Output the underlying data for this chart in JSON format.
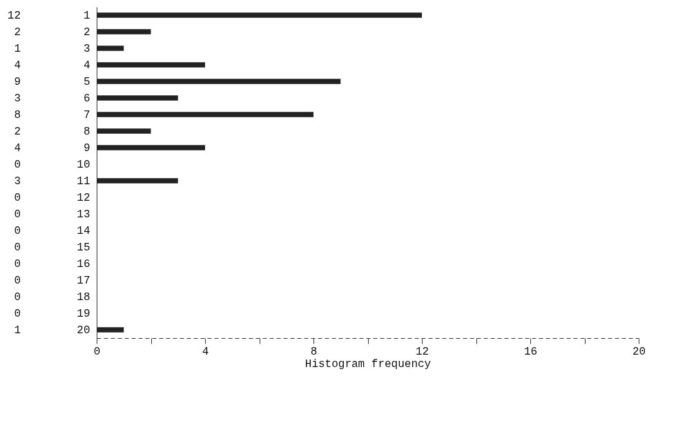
{
  "chart_data": {
    "type": "bar",
    "orientation": "horizontal",
    "xlabel": "Histogram frequency",
    "categories": [
      "1",
      "2",
      "3",
      "4",
      "5",
      "6",
      "7",
      "8",
      "9",
      "10",
      "11",
      "12",
      "13",
      "14",
      "15",
      "16",
      "17",
      "18",
      "19",
      "20"
    ],
    "values": [
      12,
      2,
      1,
      4,
      9,
      3,
      8,
      2,
      4,
      0,
      3,
      0,
      0,
      0,
      0,
      0,
      0,
      0,
      0,
      1
    ],
    "color": "#222222",
    "data_labels": true,
    "xlim": [
      0,
      20
    ],
    "xticks": [
      0,
      {
        "value": 2,
        "label": null
      },
      4,
      {
        "value": 6,
        "label": null
      },
      8,
      {
        "value": 10,
        "label": null
      },
      12,
      {
        "value": 14,
        "label": null
      },
      16,
      {
        "value": 18,
        "label": null
      },
      20
    ]
  }
}
